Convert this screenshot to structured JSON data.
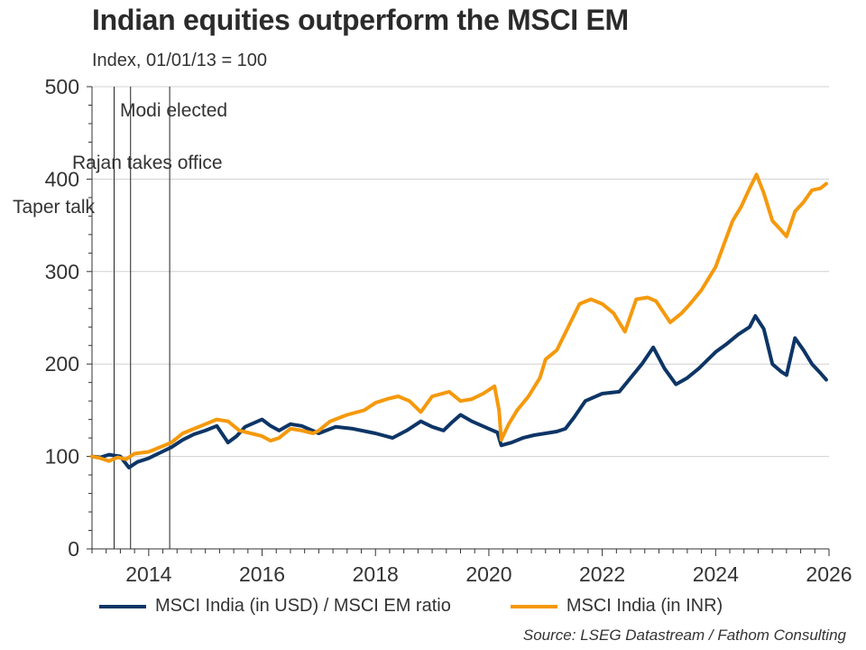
{
  "chart_data": {
    "type": "line",
    "title": "Indian equities outperform the MSCI EM",
    "subtitle": "Index, 01/01/13 = 100",
    "xlabel": "",
    "ylabel": "",
    "xlim": [
      2013,
      2026
    ],
    "ylim": [
      0,
      500
    ],
    "y_ticks": [
      0,
      100,
      200,
      300,
      400,
      500
    ],
    "y_tick_labels": [
      "0",
      "100",
      "200",
      "300",
      "400",
      "500"
    ],
    "x_ticks": [
      2014,
      2016,
      2018,
      2020,
      2022,
      2024,
      2026
    ],
    "x_tick_labels": [
      "2014",
      "2016",
      "2018",
      "2020",
      "2022",
      "2024",
      "2026"
    ],
    "grid": "horizontal",
    "legend_position": "bottom",
    "annotations": [
      {
        "label": "Taper talk",
        "x": 2013.39
      },
      {
        "label": "Rajan takes office",
        "x": 2013.68
      },
      {
        "label": "Modi elected",
        "x": 2014.37
      }
    ],
    "series": [
      {
        "name": "MSCI India (in USD) / MSCI EM ratio",
        "color": "#0d3566",
        "x": [
          2013.0,
          2013.15,
          2013.3,
          2013.4,
          2013.5,
          2013.65,
          2013.8,
          2014.0,
          2014.2,
          2014.4,
          2014.6,
          2014.8,
          2015.0,
          2015.2,
          2015.4,
          2015.55,
          2015.7,
          2015.85,
          2016.0,
          2016.15,
          2016.3,
          2016.5,
          2016.7,
          2017.0,
          2017.3,
          2017.6,
          2018.0,
          2018.3,
          2018.55,
          2018.8,
          2019.0,
          2019.2,
          2019.35,
          2019.5,
          2019.7,
          2020.0,
          2020.15,
          2020.22,
          2020.4,
          2020.6,
          2020.8,
          2021.0,
          2021.2,
          2021.35,
          2021.5,
          2021.7,
          2022.0,
          2022.3,
          2022.5,
          2022.7,
          2022.9,
          2023.1,
          2023.3,
          2023.5,
          2023.7,
          2024.0,
          2024.2,
          2024.4,
          2024.6,
          2024.7,
          2024.85,
          2025.0,
          2025.15,
          2025.25,
          2025.4,
          2025.55,
          2025.7,
          2025.85,
          2025.95
        ],
        "values": [
          100,
          99,
          102,
          101,
          100,
          88,
          94,
          98,
          104,
          110,
          118,
          124,
          128,
          133,
          115,
          122,
          132,
          136,
          140,
          133,
          128,
          135,
          133,
          125,
          132,
          130,
          125,
          120,
          128,
          138,
          132,
          128,
          137,
          145,
          138,
          130,
          126,
          112,
          115,
          120,
          123,
          125,
          127,
          130,
          142,
          160,
          168,
          170,
          185,
          200,
          218,
          195,
          178,
          185,
          195,
          213,
          222,
          232,
          240,
          252,
          238,
          200,
          192,
          188,
          228,
          215,
          200,
          190,
          183
        ]
      },
      {
        "name": "MSCI India (in INR)",
        "color": "#f5990c",
        "x": [
          2013.0,
          2013.15,
          2013.3,
          2013.45,
          2013.6,
          2013.75,
          2014.0,
          2014.2,
          2014.4,
          2014.6,
          2014.8,
          2015.0,
          2015.2,
          2015.4,
          2015.6,
          2015.8,
          2016.0,
          2016.15,
          2016.3,
          2016.5,
          2016.7,
          2016.9,
          2017.0,
          2017.2,
          2017.5,
          2017.8,
          2018.0,
          2018.2,
          2018.4,
          2018.6,
          2018.8,
          2019.0,
          2019.3,
          2019.5,
          2019.7,
          2019.9,
          2020.1,
          2020.18,
          2020.22,
          2020.35,
          2020.5,
          2020.7,
          2020.9,
          2021.0,
          2021.2,
          2021.4,
          2021.6,
          2021.8,
          2022.0,
          2022.2,
          2022.4,
          2022.6,
          2022.8,
          2022.95,
          2023.2,
          2023.4,
          2023.55,
          2023.75,
          2023.9,
          2024.0,
          2024.15,
          2024.3,
          2024.45,
          2024.6,
          2024.72,
          2024.85,
          2025.0,
          2025.15,
          2025.25,
          2025.4,
          2025.55,
          2025.7,
          2025.85,
          2025.95
        ],
        "values": [
          100,
          98,
          95,
          99,
          97,
          103,
          105,
          110,
          115,
          125,
          130,
          135,
          140,
          138,
          128,
          125,
          122,
          117,
          120,
          130,
          128,
          125,
          128,
          138,
          145,
          150,
          158,
          162,
          165,
          160,
          148,
          165,
          170,
          160,
          162,
          168,
          176,
          150,
          118,
          135,
          150,
          165,
          185,
          205,
          215,
          240,
          265,
          270,
          265,
          255,
          235,
          270,
          272,
          268,
          245,
          255,
          265,
          280,
          295,
          305,
          330,
          355,
          370,
          390,
          405,
          385,
          355,
          345,
          338,
          365,
          375,
          388,
          390,
          395
        ]
      }
    ],
    "source": "Source: LSEG Datastream / Fathom Consulting"
  }
}
